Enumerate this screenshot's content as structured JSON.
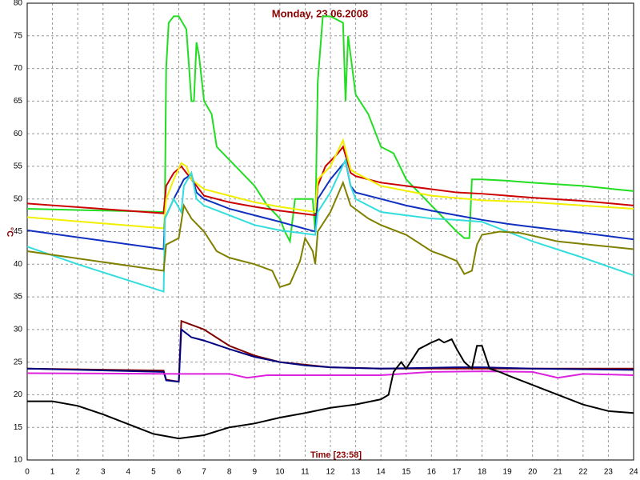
{
  "chart_data": {
    "type": "line",
    "title": "Monday, 23.06.2008",
    "x_label": "Time [23:58]",
    "y_label": "°C",
    "xlim": [
      0,
      24
    ],
    "xticks": [
      0,
      1,
      2,
      3,
      4,
      5,
      6,
      7,
      8,
      9,
      10,
      11,
      12,
      13,
      14,
      15,
      16,
      17,
      18,
      19,
      20,
      21,
      22,
      23,
      24
    ],
    "ylim": [
      10,
      80
    ],
    "yticks": [
      10,
      15,
      20,
      25,
      30,
      35,
      40,
      45,
      50,
      55,
      60,
      65,
      70,
      75,
      80
    ],
    "grid": true,
    "series": [
      {
        "color": "#22dd22",
        "x": [
          0,
          5.4,
          5.45,
          5.5,
          5.6,
          5.8,
          6.0,
          6.3,
          6.5,
          6.6,
          6.7,
          6.8,
          7.0,
          7.3,
          7.5,
          8.0,
          8.5,
          9.0,
          9.5,
          10.0,
          10.2,
          10.4,
          10.6,
          11.0,
          11.3,
          11.4,
          11.5,
          11.7,
          12.0,
          12.5,
          12.6,
          12.7,
          12.8,
          13.0,
          13.5,
          14.0,
          14.5,
          15.0,
          15.5,
          16.0,
          16.5,
          17.0,
          17.3,
          17.5,
          17.6,
          17.7,
          18.0,
          19.0,
          20.0,
          22.0,
          24.0
        ],
        "values": [
          48.5,
          48,
          50,
          70,
          77,
          78,
          78,
          76,
          65,
          65,
          74,
          72,
          65,
          63,
          58,
          56,
          54,
          52,
          49,
          47,
          45,
          43.5,
          50,
          50,
          50,
          45,
          68,
          78,
          78,
          77,
          65,
          75,
          72,
          66,
          63,
          58,
          57,
          53,
          51,
          49,
          47,
          45,
          44,
          44,
          53,
          53,
          53,
          52.8,
          52.5,
          52,
          51.2
        ]
      },
      {
        "color": "#cc0000",
        "x": [
          0,
          5.4,
          5.5,
          5.8,
          6.1,
          6.3,
          6.5,
          7,
          8,
          9,
          10,
          11.4,
          11.5,
          11.8,
          12.3,
          12.5,
          12.8,
          13,
          14,
          15,
          16,
          17,
          18,
          20,
          22,
          24
        ],
        "values": [
          49.3,
          47.8,
          52,
          54,
          55,
          54,
          53,
          50.5,
          49.5,
          48.8,
          48.2,
          47.5,
          52,
          55,
          57,
          58,
          54,
          53.5,
          52.5,
          52,
          51.5,
          51,
          50.8,
          50.2,
          49.7,
          49
        ]
      },
      {
        "color": "#f0f000",
        "x": [
          0,
          5.4,
          5.5,
          5.8,
          6.1,
          6.3,
          6.5,
          7,
          8,
          9,
          10,
          11.4,
          11.5,
          12,
          12.5,
          12.8,
          13,
          14,
          16,
          18,
          20,
          22,
          24
        ],
        "values": [
          47.2,
          45.5,
          50,
          53,
          55.5,
          55,
          53,
          51.5,
          50.5,
          49.5,
          48.8,
          48,
          53,
          55,
          59,
          54.5,
          54,
          52,
          50.5,
          49.8,
          49.5,
          49,
          48.5
        ]
      },
      {
        "color": "#1030c0",
        "x": [
          0,
          5.4,
          5.45,
          5.8,
          6.2,
          6.5,
          6.7,
          7,
          8,
          9,
          10,
          11.4,
          11.5,
          12,
          12.6,
          12.8,
          13,
          14,
          15,
          16,
          17,
          18,
          19,
          20,
          22,
          24
        ],
        "values": [
          45.2,
          42.3,
          47,
          50,
          53,
          53.8,
          51,
          50,
          48.5,
          47.5,
          46.5,
          45,
          50,
          53,
          55.8,
          52,
          51,
          50,
          49,
          48.2,
          47.5,
          46.8,
          46.2,
          45.7,
          44.8,
          43.8
        ]
      },
      {
        "color": "#33dddd",
        "x": [
          0,
          2,
          5.4,
          5.45,
          5.8,
          6.1,
          6.2,
          6.5,
          6.7,
          7,
          8,
          9,
          10,
          11.4,
          11.5,
          12,
          12.6,
          12.8,
          13,
          14,
          15,
          16,
          17,
          18,
          19,
          20,
          22,
          24
        ],
        "values": [
          42.7,
          40,
          35.8,
          47,
          50,
          48,
          52,
          54,
          50,
          49,
          47.5,
          46,
          45.2,
          44.5,
          48,
          51,
          56,
          52,
          50,
          48,
          47.5,
          47,
          46.8,
          46.5,
          45,
          43.5,
          41,
          38.3
        ]
      },
      {
        "color": "#808000",
        "x": [
          0,
          5.4,
          5.5,
          6,
          6.2,
          6.5,
          7,
          7.5,
          8,
          9,
          9.7,
          10,
          10.4,
          10.8,
          11.0,
          11.3,
          11.4,
          11.5,
          12,
          12.5,
          12.8,
          13.5,
          14,
          15,
          16,
          16.5,
          17,
          17.3,
          17.6,
          17.8,
          18,
          18.7,
          19.5,
          21,
          24
        ],
        "values": [
          42,
          39,
          43,
          44,
          49,
          47,
          45,
          42,
          41,
          40,
          39,
          36.5,
          37,
          40.5,
          44,
          42,
          40,
          45,
          48,
          52.5,
          49,
          47,
          46,
          44.5,
          42,
          41.3,
          40.5,
          38.5,
          39,
          43,
          44.5,
          45,
          44.8,
          43.5,
          42.3
        ]
      },
      {
        "color": "#800000",
        "x": [
          0,
          5.4,
          5.5,
          6,
          6.1,
          7,
          8,
          9,
          10,
          11,
          12,
          14,
          18,
          20,
          24
        ],
        "values": [
          24,
          23.7,
          22.3,
          22,
          31.3,
          30,
          27.5,
          26,
          25,
          24.6,
          24.2,
          24,
          24,
          24,
          24
        ]
      },
      {
        "color": "#000080",
        "x": [
          0,
          5.4,
          5.5,
          6,
          6.1,
          6.5,
          7,
          8,
          9,
          10,
          11,
          12,
          14,
          17,
          18,
          20,
          24
        ],
        "values": [
          24,
          23.5,
          22.2,
          22,
          30,
          28.8,
          28.3,
          27,
          25.8,
          25,
          24.5,
          24.2,
          24,
          24.2,
          24.2,
          24,
          23.8
        ]
      },
      {
        "color": "#dd22dd",
        "x": [
          0,
          6,
          8,
          8.7,
          9.5,
          14,
          16,
          18,
          20,
          21,
          22,
          24
        ],
        "values": [
          23.3,
          23.2,
          23.2,
          22.6,
          23,
          23,
          23.5,
          23.6,
          23.5,
          22.6,
          23.2,
          23
        ]
      },
      {
        "color": "#000000",
        "x": [
          0,
          1,
          2,
          3,
          4,
          5,
          6,
          7,
          8,
          9,
          10,
          11,
          12,
          13,
          14,
          14.3,
          14.5,
          14.8,
          15,
          15.5,
          16,
          16.3,
          16.5,
          16.8,
          17,
          17.3,
          17.6,
          17.8,
          18,
          18.3,
          18.7,
          19,
          20,
          21,
          22,
          23,
          24
        ],
        "values": [
          19,
          19,
          18.3,
          17,
          15.5,
          14,
          13.3,
          13.8,
          15,
          15.6,
          16.5,
          17.2,
          18,
          18.5,
          19.3,
          20,
          23.5,
          25,
          24,
          27,
          28,
          28.5,
          28,
          28.5,
          27,
          25,
          24,
          27.5,
          27.5,
          24,
          23.5,
          23,
          21.5,
          20,
          18.5,
          17.5,
          17.2
        ]
      }
    ]
  }
}
